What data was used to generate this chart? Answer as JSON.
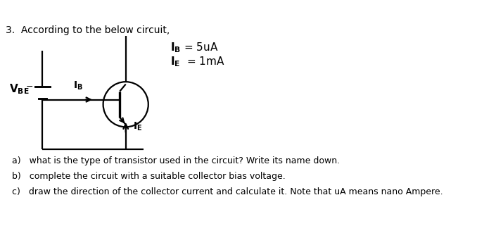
{
  "title": "3.  According to the below circuit,",
  "bg_color": "#ffffff",
  "text_color": "#000000",
  "questions": [
    "a)   what is the type of transistor used in the circuit? Write its name down.",
    "b)   complete the circuit with a suitable collector bias voltage.",
    "c)   draw the direction of the collector current and calculate it. Note that uA means nano Ampere."
  ]
}
